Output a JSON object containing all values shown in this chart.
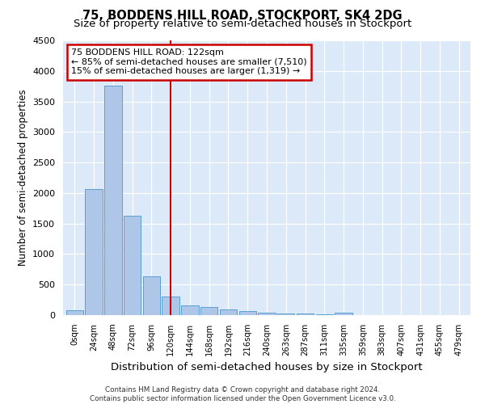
{
  "title": "75, BODDENS HILL ROAD, STOCKPORT, SK4 2DG",
  "subtitle": "Size of property relative to semi-detached houses in Stockport",
  "xlabel": "Distribution of semi-detached houses by size in Stockport",
  "ylabel": "Number of semi-detached properties",
  "bin_labels": [
    "0sqm",
    "24sqm",
    "48sqm",
    "72sqm",
    "96sqm",
    "120sqm",
    "144sqm",
    "168sqm",
    "192sqm",
    "216sqm",
    "240sqm",
    "263sqm",
    "287sqm",
    "311sqm",
    "335sqm",
    "359sqm",
    "383sqm",
    "407sqm",
    "431sqm",
    "455sqm",
    "479sqm"
  ],
  "bar_values": [
    80,
    2070,
    3760,
    1630,
    630,
    310,
    155,
    130,
    90,
    65,
    45,
    30,
    20,
    10,
    45,
    5,
    5,
    5,
    5,
    5,
    5
  ],
  "bar_color": "#aec6e8",
  "bar_edge_color": "#5a9fd4",
  "vline_x": 5.0,
  "annotation_text": "75 BODDENS HILL ROAD: 122sqm\n← 85% of semi-detached houses are smaller (7,510)\n15% of semi-detached houses are larger (1,319) →",
  "annotation_box_color": "#ffffff",
  "annotation_box_edge": "#cc0000",
  "vline_color": "#cc0000",
  "ylim": [
    0,
    4500
  ],
  "footer": "Contains HM Land Registry data © Crown copyright and database right 2024.\nContains public sector information licensed under the Open Government Licence v3.0.",
  "title_fontsize": 10.5,
  "subtitle_fontsize": 9.5,
  "xlabel_fontsize": 9.5,
  "ylabel_fontsize": 8.5,
  "annot_fontsize": 8.0,
  "background_color": "#dce9f8",
  "plot_background": "#dce9f8"
}
